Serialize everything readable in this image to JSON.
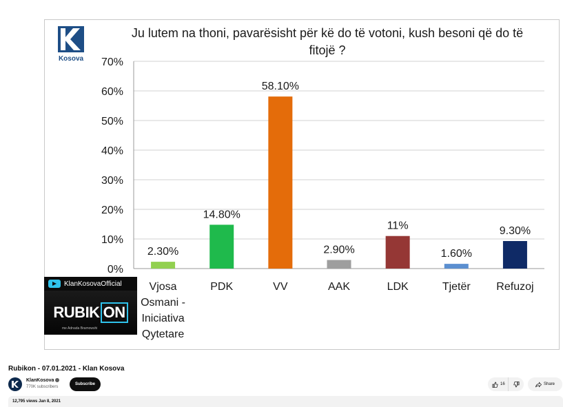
{
  "chart_data": {
    "type": "bar",
    "title": "Ju lutem na thoni, pavarësisht për kë do të votoni, kush besoni që do të fitojë ?",
    "title_lines": [
      "Ju lutem na thoni, pavarësisht për kë do të votoni, kush besoni që do të",
      "fitojë ?"
    ],
    "categories": [
      "Vjosa Osmani - Iniciativa Qytetare",
      "PDK",
      "VV",
      "AAK",
      "LDK",
      "Tjetër",
      "Refuzoj"
    ],
    "category_lines": [
      [
        "Vjosa",
        "Osmani -",
        "Iniciativa",
        "Qytetare"
      ],
      [
        "PDK"
      ],
      [
        "VV"
      ],
      [
        "AAK"
      ],
      [
        "LDK"
      ],
      [
        "Tjetër"
      ],
      [
        "Refuzoj"
      ]
    ],
    "values": [
      2.3,
      14.8,
      58.1,
      2.9,
      11,
      1.6,
      9.3
    ],
    "data_labels": [
      "2.30%",
      "14.80%",
      "58.10%",
      "2.90%",
      "11%",
      "1.60%",
      "9.30%"
    ],
    "colors": [
      "#92d050",
      "#1fba4c",
      "#e46c0a",
      "#9e9e9e",
      "#953735",
      "#5b8fd0",
      "#0f2a66"
    ],
    "y_ticks": [
      "0%",
      "10%",
      "20%",
      "30%",
      "40%",
      "50%",
      "60%",
      "70%"
    ],
    "ylim": [
      0,
      70
    ],
    "grid": true,
    "legend": "none",
    "xlabel": "",
    "ylabel": ""
  },
  "logo": {
    "text": "Kosova",
    "color": "#1e4e86"
  },
  "overlay": {
    "channel_handle": "KlanKosovaOfficial",
    "brand_main": "RUBIK",
    "brand_on": "ON",
    "brand_sub": "me Adnada Bramowshi"
  },
  "video": {
    "title": "Rubikon - 07.01.2021 - Klan Kosova",
    "channel_name": "KlanKosova",
    "subscribers": "770K subscribers",
    "subscribe_label": "Subscribe",
    "likes": "16",
    "share_label": "Share",
    "views_date": "12,795 views  Jan 8, 2021"
  },
  "icons": {
    "like": "thumbs-up-icon",
    "dislike": "thumbs-down-icon",
    "share": "share-arrow-icon",
    "verified": "verified-check-icon"
  }
}
